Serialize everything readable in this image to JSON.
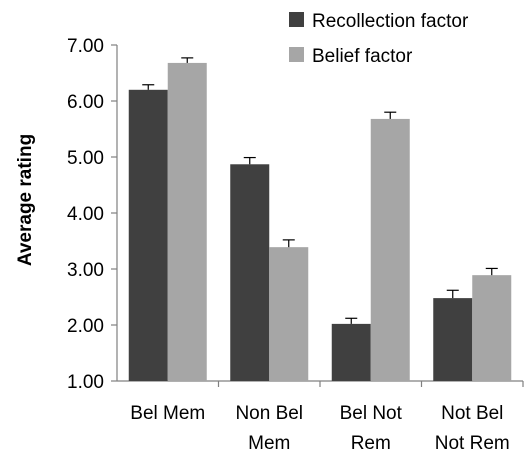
{
  "chart_data": {
    "type": "bar",
    "ylabel": "Average rating",
    "xlabel": "",
    "ylim": [
      1.0,
      7.0
    ],
    "yticks": [
      "1.00",
      "2.00",
      "3.00",
      "4.00",
      "5.00",
      "6.00",
      "7.00"
    ],
    "categories": [
      [
        "Bel Mem"
      ],
      [
        "Non Bel",
        "Mem"
      ],
      [
        "Bel Not",
        "Rem"
      ],
      [
        "Not Bel",
        "Not Rem"
      ]
    ],
    "series": [
      {
        "name": "Recollection factor",
        "color": "#404040",
        "values": [
          6.2,
          4.87,
          2.02,
          2.48
        ],
        "errors": [
          0.09,
          0.12,
          0.1,
          0.14
        ]
      },
      {
        "name": "Belief factor",
        "color": "#a6a6a6",
        "values": [
          6.68,
          3.39,
          5.68,
          2.89
        ],
        "errors": [
          0.09,
          0.13,
          0.12,
          0.12
        ]
      }
    ],
    "legend": "top-right",
    "grid": false,
    "error_bars": true
  }
}
